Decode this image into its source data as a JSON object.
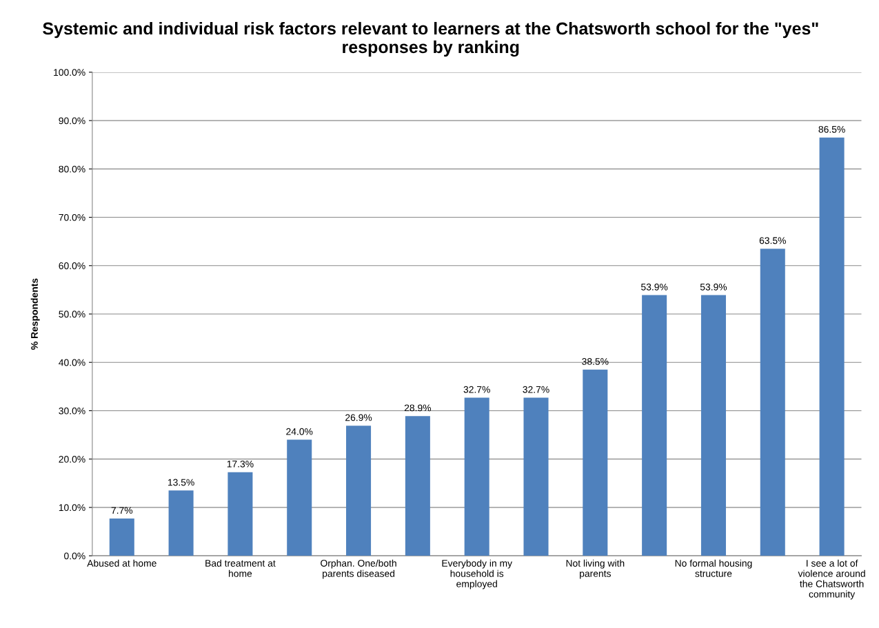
{
  "chart_data": {
    "type": "bar",
    "title": "Systemic and individual risk factors relevant to learners at the Chatsworth school for the \"yes\" responses by ranking",
    "ylabel": "% Respondents",
    "categories": [
      "Abused at home",
      null,
      "Bad treatment at home",
      null,
      "Orphan. One/both parents diseased",
      null,
      "Everybody in my household is employed",
      null,
      "Not living with parents",
      null,
      "No formal housing structure",
      null,
      "I see a lot of violence around the Chatsworth community"
    ],
    "values": [
      7.7,
      13.5,
      17.3,
      24.0,
      26.9,
      28.9,
      32.7,
      32.7,
      38.5,
      53.9,
      53.9,
      63.5,
      86.5
    ],
    "value_labels": [
      "7.7%",
      "13.5%",
      "17.3%",
      "24.0%",
      "26.9%",
      "28.9%",
      "32.7%",
      "32.7%",
      "38.5%",
      "53.9%",
      "53.9%",
      "63.5%",
      "86.5%"
    ],
    "color": "#4f81bd",
    "ylim": [
      0,
      100
    ],
    "yticks": [
      {
        "value": 0,
        "label": "0.0%"
      },
      {
        "value": 10,
        "label": "10.0%"
      },
      {
        "value": 20,
        "label": "20.0%"
      },
      {
        "value": 30,
        "label": "30.0%"
      },
      {
        "value": 40,
        "label": "40.0%"
      },
      {
        "value": 50,
        "label": "50.0%"
      },
      {
        "value": 60,
        "label": "60.0%"
      },
      {
        "value": 70,
        "label": "70.0%"
      },
      {
        "value": 80,
        "label": "80.0%"
      },
      {
        "value": 90,
        "label": "90.0%"
      },
      {
        "value": 100,
        "label": "100.0%"
      }
    ],
    "grid": "y",
    "legend": false
  }
}
